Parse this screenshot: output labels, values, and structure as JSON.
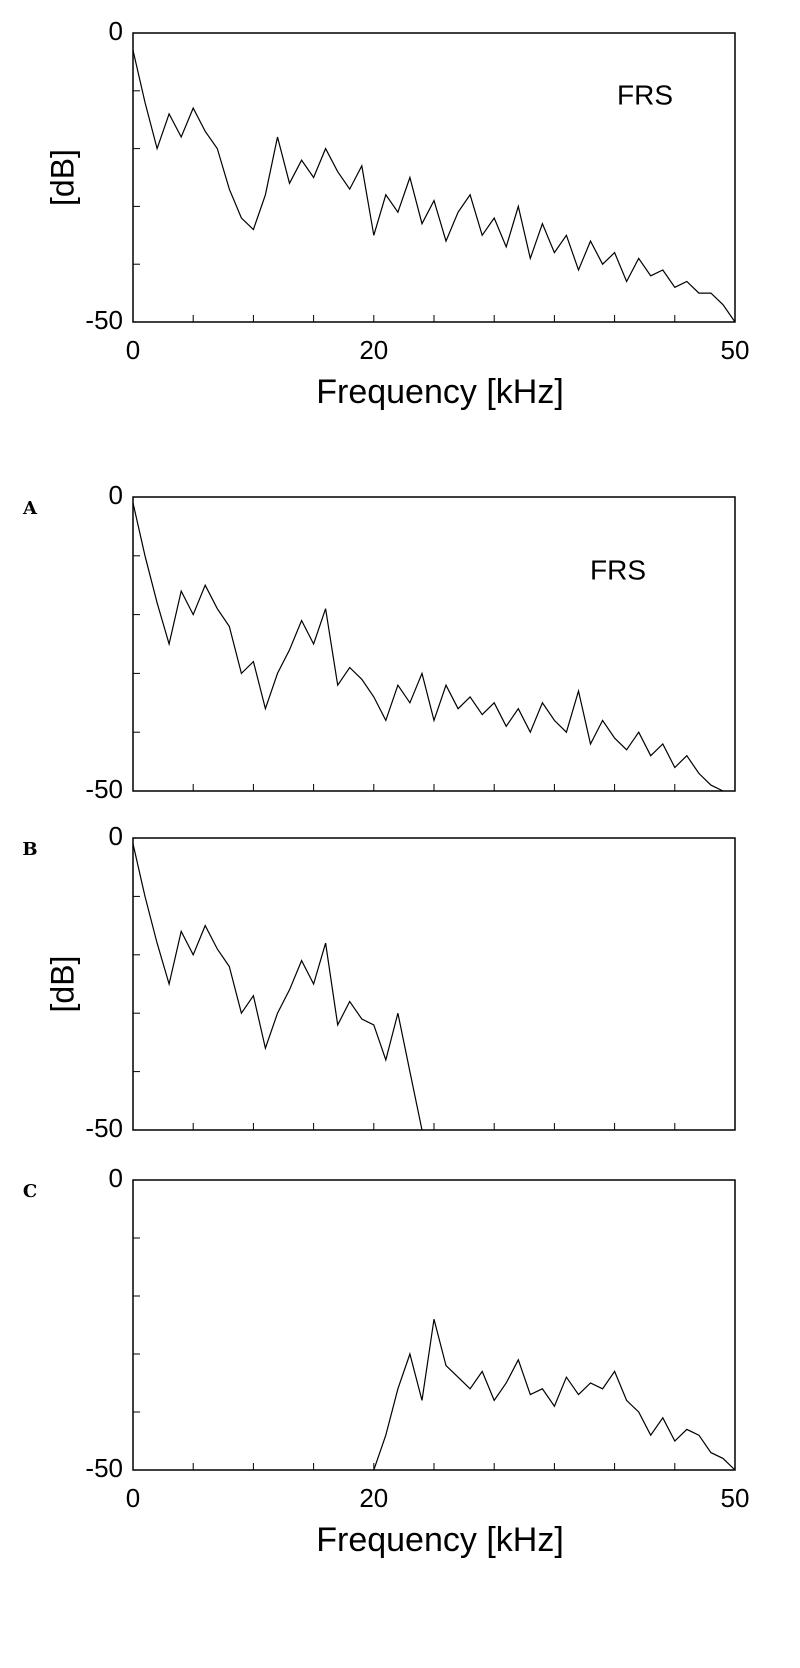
{
  "chart_data": [
    {
      "type": "line",
      "annotation": "FRS",
      "xlabel": "Frequency [kHz]",
      "ylabel": "[dB]",
      "xlim": [
        0,
        50
      ],
      "ylim": [
        -50,
        0
      ],
      "xticks": [
        0,
        20,
        50
      ],
      "yticks": [
        0,
        -50
      ],
      "xminorticks": [
        5,
        10,
        15,
        25,
        30,
        35,
        40,
        45
      ],
      "yminorticks": [
        -10,
        -20,
        -30,
        -40
      ],
      "color": "#000000",
      "x": [
        0,
        1,
        2,
        3,
        4,
        5,
        6,
        7,
        8,
        9,
        10,
        11,
        12,
        13,
        14,
        15,
        16,
        17,
        18,
        19,
        20,
        21,
        22,
        23,
        24,
        25,
        26,
        27,
        28,
        29,
        30,
        31,
        32,
        33,
        34,
        35,
        36,
        37,
        38,
        39,
        40,
        41,
        42,
        43,
        44,
        45,
        46,
        47,
        48,
        49,
        50
      ],
      "values": [
        -3,
        -12,
        -20,
        -14,
        -18,
        -13,
        -17,
        -20,
        -27,
        -32,
        -34,
        -28,
        -18,
        -26,
        -22,
        -25,
        -20,
        -24,
        -27,
        -23,
        -35,
        -28,
        -31,
        -25,
        -33,
        -29,
        -36,
        -31,
        -28,
        -35,
        -32,
        -37,
        -30,
        -39,
        -33,
        -38,
        -35,
        -41,
        -36,
        -40,
        -38,
        -43,
        -39,
        -42,
        -41,
        -44,
        -43,
        -45,
        -45,
        -47,
        -50
      ]
    },
    {
      "type": "line",
      "label": "A",
      "annotation": "FRS",
      "xlim": [
        0,
        50
      ],
      "ylim": [
        -50,
        0
      ],
      "yticks": [
        0,
        -50
      ],
      "xminorticks": [
        5,
        10,
        15,
        20,
        25,
        30,
        35,
        40,
        45
      ],
      "yminorticks": [
        -10,
        -20,
        -30,
        -40
      ],
      "color": "#000000",
      "x": [
        0,
        1,
        2,
        3,
        4,
        5,
        6,
        7,
        8,
        9,
        10,
        11,
        12,
        13,
        14,
        15,
        16,
        17,
        18,
        19,
        20,
        21,
        22,
        23,
        24,
        25,
        26,
        27,
        28,
        29,
        30,
        31,
        32,
        33,
        34,
        35,
        36,
        37,
        38,
        39,
        40,
        41,
        42,
        43,
        44,
        45,
        46,
        47,
        48,
        49
      ],
      "values": [
        -1,
        -10,
        -18,
        -25,
        -16,
        -20,
        -15,
        -19,
        -22,
        -30,
        -28,
        -36,
        -30,
        -26,
        -21,
        -25,
        -19,
        -32,
        -29,
        -31,
        -34,
        -38,
        -32,
        -35,
        -30,
        -38,
        -32,
        -36,
        -34,
        -37,
        -35,
        -39,
        -36,
        -40,
        -35,
        -38,
        -40,
        -33,
        -42,
        -38,
        -41,
        -43,
        -40,
        -44,
        -42,
        -46,
        -44,
        -47,
        -49,
        -50
      ]
    },
    {
      "type": "line",
      "label": "B",
      "ylabel": "[dB]",
      "xlim": [
        0,
        50
      ],
      "ylim": [
        -50,
        0
      ],
      "yticks": [
        0,
        -50
      ],
      "xminorticks": [
        5,
        10,
        15,
        20,
        25,
        30,
        35,
        40,
        45
      ],
      "yminorticks": [
        -10,
        -20,
        -30,
        -40
      ],
      "color": "#000000",
      "x": [
        0,
        1,
        2,
        3,
        4,
        5,
        6,
        7,
        8,
        9,
        10,
        11,
        12,
        13,
        14,
        15,
        16,
        17,
        18,
        19,
        20,
        21,
        22,
        23,
        24
      ],
      "values": [
        -1,
        -10,
        -18,
        -25,
        -16,
        -20,
        -15,
        -19,
        -22,
        -30,
        -27,
        -36,
        -30,
        -26,
        -21,
        -25,
        -18,
        -32,
        -28,
        -31,
        -32,
        -38,
        -30,
        -40,
        -50
      ]
    },
    {
      "type": "line",
      "label": "C",
      "xlabel": "Frequency [kHz]",
      "xlim": [
        0,
        50
      ],
      "ylim": [
        -50,
        0
      ],
      "xticks": [
        0,
        20,
        50
      ],
      "yticks": [
        0,
        -50
      ],
      "xminorticks": [
        5,
        10,
        15,
        25,
        30,
        35,
        40,
        45
      ],
      "yminorticks": [
        -10,
        -20,
        -30,
        -40
      ],
      "color": "#000000",
      "x": [
        20,
        21,
        22,
        23,
        24,
        25,
        26,
        27,
        28,
        29,
        30,
        31,
        32,
        33,
        34,
        35,
        36,
        37,
        38,
        39,
        40,
        41,
        42,
        43,
        44,
        45,
        46,
        47,
        48,
        49,
        50
      ],
      "values": [
        -50,
        -44,
        -36,
        -30,
        -38,
        -24,
        -32,
        -34,
        -36,
        -33,
        -38,
        -35,
        -31,
        -37,
        -36,
        -39,
        -34,
        -37,
        -35,
        -36,
        -33,
        -38,
        -40,
        -44,
        -41,
        -45,
        -43,
        -44,
        -47,
        -48,
        -50
      ]
    }
  ]
}
